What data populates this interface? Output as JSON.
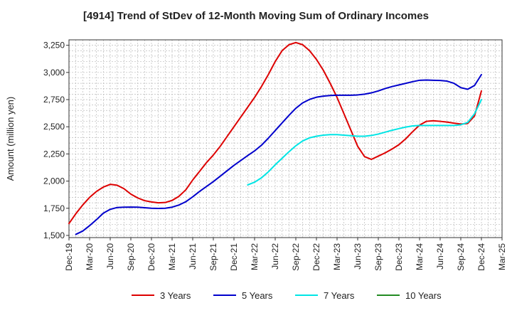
{
  "chart_data": {
    "type": "line",
    "title": "[4914]  Trend of StDev of 12-Month Moving Sum of Ordinary Incomes",
    "ylabel": "Amount (million yen)",
    "xlabel": "",
    "ylim": [
      1480,
      3300
    ],
    "yticks": [
      1500,
      1750,
      2000,
      2250,
      2500,
      2750,
      3000,
      3250
    ],
    "ytick_labels": [
      "1,500",
      "1,750",
      "2,000",
      "2,250",
      "2,500",
      "2,750",
      "3,000",
      "3,250"
    ],
    "xlim": [
      "2019-12",
      "2025-03"
    ],
    "xtick_labels": [
      "Dec-19",
      "Mar-20",
      "Jun-20",
      "Sep-20",
      "Dec-20",
      "Mar-21",
      "Jun-21",
      "Sep-21",
      "Dec-21",
      "Mar-22",
      "Jun-22",
      "Sep-22",
      "Dec-22",
      "Mar-23",
      "Jun-23",
      "Sep-23",
      "Dec-23",
      "Mar-24",
      "Jun-24",
      "Sep-24",
      "Dec-24",
      "Mar-25"
    ],
    "grid": true,
    "legend_position": "bottom",
    "series": [
      {
        "name": "3 Years",
        "color": "#dd0000",
        "points": [
          [
            "2019-12",
            1610
          ],
          [
            "2020-01",
            1700
          ],
          [
            "2020-02",
            1780
          ],
          [
            "2020-03",
            1850
          ],
          [
            "2020-04",
            1905
          ],
          [
            "2020-05",
            1945
          ],
          [
            "2020-06",
            1970
          ],
          [
            "2020-07",
            1962
          ],
          [
            "2020-08",
            1930
          ],
          [
            "2020-09",
            1880
          ],
          [
            "2020-10",
            1845
          ],
          [
            "2020-11",
            1820
          ],
          [
            "2020-12",
            1808
          ],
          [
            "2021-01",
            1800
          ],
          [
            "2021-02",
            1803
          ],
          [
            "2021-03",
            1822
          ],
          [
            "2021-04",
            1860
          ],
          [
            "2021-05",
            1920
          ],
          [
            "2021-06",
            2010
          ],
          [
            "2021-07",
            2090
          ],
          [
            "2021-08",
            2170
          ],
          [
            "2021-09",
            2240
          ],
          [
            "2021-10",
            2320
          ],
          [
            "2021-11",
            2410
          ],
          [
            "2021-12",
            2500
          ],
          [
            "2022-01",
            2590
          ],
          [
            "2022-02",
            2680
          ],
          [
            "2022-03",
            2770
          ],
          [
            "2022-04",
            2870
          ],
          [
            "2022-05",
            2980
          ],
          [
            "2022-06",
            3100
          ],
          [
            "2022-07",
            3200
          ],
          [
            "2022-08",
            3255
          ],
          [
            "2022-09",
            3275
          ],
          [
            "2022-10",
            3255
          ],
          [
            "2022-11",
            3200
          ],
          [
            "2022-12",
            3120
          ],
          [
            "2023-01",
            3020
          ],
          [
            "2023-02",
            2900
          ],
          [
            "2023-03",
            2770
          ],
          [
            "2023-04",
            2620
          ],
          [
            "2023-05",
            2470
          ],
          [
            "2023-06",
            2320
          ],
          [
            "2023-07",
            2225
          ],
          [
            "2023-08",
            2200
          ],
          [
            "2023-09",
            2230
          ],
          [
            "2023-10",
            2260
          ],
          [
            "2023-11",
            2295
          ],
          [
            "2023-12",
            2335
          ],
          [
            "2024-01",
            2390
          ],
          [
            "2024-02",
            2455
          ],
          [
            "2024-03",
            2515
          ],
          [
            "2024-04",
            2550
          ],
          [
            "2024-05",
            2555
          ],
          [
            "2024-06",
            2550
          ],
          [
            "2024-07",
            2543
          ],
          [
            "2024-08",
            2533
          ],
          [
            "2024-09",
            2525
          ],
          [
            "2024-10",
            2530
          ],
          [
            "2024-11",
            2600
          ],
          [
            "2024-12",
            2830
          ]
        ]
      },
      {
        "name": "5 Years",
        "color": "#0000cc",
        "points": [
          [
            "2020-01",
            1510
          ],
          [
            "2020-02",
            1540
          ],
          [
            "2020-03",
            1590
          ],
          [
            "2020-04",
            1645
          ],
          [
            "2020-05",
            1705
          ],
          [
            "2020-06",
            1740
          ],
          [
            "2020-07",
            1757
          ],
          [
            "2020-08",
            1760
          ],
          [
            "2020-09",
            1761
          ],
          [
            "2020-10",
            1760
          ],
          [
            "2020-11",
            1755
          ],
          [
            "2020-12",
            1750
          ],
          [
            "2021-01",
            1748
          ],
          [
            "2021-02",
            1750
          ],
          [
            "2021-03",
            1760
          ],
          [
            "2021-04",
            1780
          ],
          [
            "2021-05",
            1810
          ],
          [
            "2021-06",
            1855
          ],
          [
            "2021-07",
            1905
          ],
          [
            "2021-08",
            1950
          ],
          [
            "2021-09",
            1995
          ],
          [
            "2021-10",
            2045
          ],
          [
            "2021-11",
            2095
          ],
          [
            "2021-12",
            2145
          ],
          [
            "2022-01",
            2190
          ],
          [
            "2022-02",
            2235
          ],
          [
            "2022-03",
            2278
          ],
          [
            "2022-04",
            2330
          ],
          [
            "2022-05",
            2395
          ],
          [
            "2022-06",
            2465
          ],
          [
            "2022-07",
            2535
          ],
          [
            "2022-08",
            2605
          ],
          [
            "2022-09",
            2670
          ],
          [
            "2022-10",
            2720
          ],
          [
            "2022-11",
            2752
          ],
          [
            "2022-12",
            2772
          ],
          [
            "2023-01",
            2782
          ],
          [
            "2023-02",
            2788
          ],
          [
            "2023-03",
            2790
          ],
          [
            "2023-04",
            2790
          ],
          [
            "2023-05",
            2790
          ],
          [
            "2023-06",
            2793
          ],
          [
            "2023-07",
            2800
          ],
          [
            "2023-08",
            2812
          ],
          [
            "2023-09",
            2830
          ],
          [
            "2023-10",
            2852
          ],
          [
            "2023-11",
            2870
          ],
          [
            "2023-12",
            2885
          ],
          [
            "2024-01",
            2900
          ],
          [
            "2024-02",
            2915
          ],
          [
            "2024-03",
            2928
          ],
          [
            "2024-04",
            2930
          ],
          [
            "2024-05",
            2928
          ],
          [
            "2024-06",
            2926
          ],
          [
            "2024-07",
            2920
          ],
          [
            "2024-08",
            2900
          ],
          [
            "2024-09",
            2860
          ],
          [
            "2024-10",
            2845
          ],
          [
            "2024-11",
            2880
          ],
          [
            "2024-12",
            2980
          ]
        ]
      },
      {
        "name": "7 Years",
        "color": "#00e5e5",
        "points": [
          [
            "2022-02",
            1965
          ],
          [
            "2022-03",
            1990
          ],
          [
            "2022-04",
            2030
          ],
          [
            "2022-05",
            2085
          ],
          [
            "2022-06",
            2150
          ],
          [
            "2022-07",
            2210
          ],
          [
            "2022-08",
            2270
          ],
          [
            "2022-09",
            2325
          ],
          [
            "2022-10",
            2370
          ],
          [
            "2022-11",
            2398
          ],
          [
            "2022-12",
            2413
          ],
          [
            "2023-01",
            2423
          ],
          [
            "2023-02",
            2428
          ],
          [
            "2023-03",
            2428
          ],
          [
            "2023-04",
            2423
          ],
          [
            "2023-05",
            2418
          ],
          [
            "2023-06",
            2413
          ],
          [
            "2023-07",
            2413
          ],
          [
            "2023-08",
            2420
          ],
          [
            "2023-09",
            2433
          ],
          [
            "2023-10",
            2450
          ],
          [
            "2023-11",
            2468
          ],
          [
            "2023-12",
            2483
          ],
          [
            "2024-01",
            2497
          ],
          [
            "2024-02",
            2508
          ],
          [
            "2024-03",
            2512
          ],
          [
            "2024-04",
            2512
          ],
          [
            "2024-05",
            2512
          ],
          [
            "2024-06",
            2512
          ],
          [
            "2024-07",
            2512
          ],
          [
            "2024-08",
            2512
          ],
          [
            "2024-09",
            2518
          ],
          [
            "2024-10",
            2540
          ],
          [
            "2024-11",
            2620
          ],
          [
            "2024-12",
            2750
          ]
        ]
      },
      {
        "name": "10 Years",
        "color": "#228b22",
        "points": []
      }
    ]
  }
}
